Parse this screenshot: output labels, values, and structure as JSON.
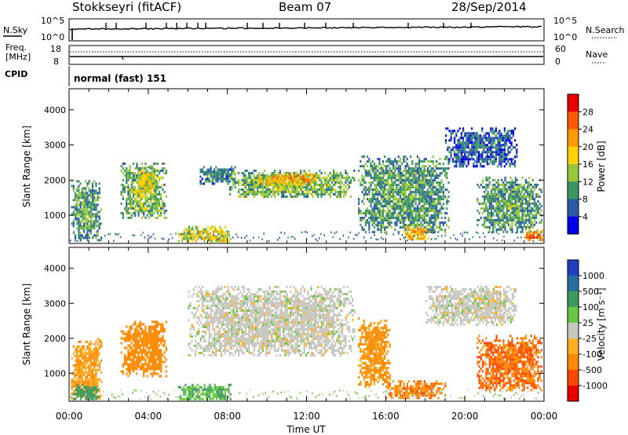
{
  "header": {
    "station": "Stokkseyri (fitACF)",
    "beam": "Beam 07",
    "date": "28/Sep/2014"
  },
  "nsky_panel": {
    "label": "N.Sky",
    "tick_top": "10^5",
    "tick_bottom": "10^0",
    "right_label": "N.Search",
    "right_tick_top": "10^5",
    "right_tick_bottom": "10^0"
  },
  "freq_panel": {
    "label_line1": "Freq.",
    "label_line2": "[MHz]",
    "tick_top": "18",
    "tick_bottom": "8",
    "right_label": "Nave",
    "right_tick_top": "60",
    "right_tick_bottom": "0"
  },
  "cpid_panel": {
    "label": "CPID",
    "value": "normal (fast) 151"
  },
  "power_colorbar": {
    "label": "Power [dB]",
    "ticks": [
      "28",
      "24",
      "20",
      "16",
      "12",
      "8",
      "4"
    ],
    "colors": [
      "#e60000",
      "#ff5a00",
      "#ff9900",
      "#ffd200",
      "#97c83c",
      "#3c9664",
      "#2a5aa8",
      "#0000e6"
    ]
  },
  "velocity_colorbar": {
    "label": "Velocity [m s⁻¹]",
    "ticks": [
      "1000",
      "500",
      "100",
      "25",
      "-25",
      "-100",
      "-500",
      "-1000"
    ],
    "colors": [
      "#2040c0",
      "#2a6ea0",
      "#3a9a60",
      "#6ac840",
      "#c8c8c0",
      "#ffb020",
      "#ff8a00",
      "#ff4800",
      "#e60000"
    ]
  },
  "chart_data": [
    {
      "type": "heatmap",
      "name": "power",
      "ylabel": "Slant Range [km]",
      "xlabel": "Time UT",
      "ylim": [
        200,
        4600
      ],
      "xlim": [
        0,
        24
      ],
      "yticks": [
        "1000",
        "2000",
        "3000",
        "4000"
      ],
      "xticks": [
        "00:00",
        "04:00",
        "08:00",
        "12:00",
        "16:00",
        "20:00",
        "00:00"
      ],
      "regions": [
        {
          "t0": 0.1,
          "t1": 1.6,
          "r0": 300,
          "r1": 2000,
          "level": 12
        },
        {
          "t0": 2.6,
          "t1": 4.9,
          "r0": 900,
          "r1": 2500,
          "level": 14
        },
        {
          "t0": 3.4,
          "t1": 4.4,
          "r0": 1600,
          "r1": 2400,
          "level": 18
        },
        {
          "t0": 6.6,
          "t1": 8.4,
          "r0": 1900,
          "r1": 2400,
          "level": 10
        },
        {
          "t0": 8.0,
          "t1": 14.4,
          "r0": 1500,
          "r1": 2300,
          "level": 14
        },
        {
          "t0": 9.6,
          "t1": 12.4,
          "r0": 1900,
          "r1": 2200,
          "level": 22
        },
        {
          "t0": 5.5,
          "t1": 8.2,
          "r0": 250,
          "r1": 700,
          "level": 18
        },
        {
          "t0": 14.6,
          "t1": 19.2,
          "r0": 500,
          "r1": 2700,
          "level": 12
        },
        {
          "t0": 16.8,
          "t1": 18.2,
          "r0": 300,
          "r1": 700,
          "level": 22
        },
        {
          "t0": 20.6,
          "t1": 23.9,
          "r0": 500,
          "r1": 2100,
          "level": 12
        },
        {
          "t0": 23.0,
          "t1": 23.9,
          "r0": 300,
          "r1": 600,
          "level": 26
        },
        {
          "t0": 19.0,
          "t1": 22.6,
          "r0": 2400,
          "r1": 3500,
          "level": 8
        }
      ]
    },
    {
      "type": "heatmap",
      "name": "velocity",
      "ylabel": "Slant Range [km]",
      "xlabel": "Time UT",
      "ylim": [
        200,
        4600
      ],
      "xlim": [
        0,
        24
      ],
      "yticks": [
        "1000",
        "2000",
        "3000",
        "4000"
      ],
      "xticks": [
        "00:00",
        "04:00",
        "08:00",
        "12:00",
        "16:00",
        "20:00",
        "00:00"
      ],
      "regions": [
        {
          "t0": 0.1,
          "t1": 1.6,
          "r0": 300,
          "r1": 2000,
          "level": -100
        },
        {
          "t0": 2.6,
          "t1": 4.9,
          "r0": 900,
          "r1": 2500,
          "level": -300
        },
        {
          "t0": 6.0,
          "t1": 14.4,
          "r0": 1500,
          "r1": 3500,
          "level": 0
        },
        {
          "t0": 5.5,
          "t1": 8.2,
          "r0": 250,
          "r1": 700,
          "level": 100
        },
        {
          "t0": 14.6,
          "t1": 16.2,
          "r0": 600,
          "r1": 2600,
          "level": -150
        },
        {
          "t0": 16.0,
          "t1": 19.0,
          "r0": 300,
          "r1": 800,
          "level": -400
        },
        {
          "t0": 18.0,
          "t1": 22.6,
          "r0": 2400,
          "r1": 3500,
          "level": 0
        },
        {
          "t0": 20.6,
          "t1": 23.9,
          "r0": 500,
          "r1": 2100,
          "level": -500
        },
        {
          "t0": 0.2,
          "t1": 1.5,
          "r0": 250,
          "r1": 700,
          "level": 300
        }
      ]
    }
  ]
}
